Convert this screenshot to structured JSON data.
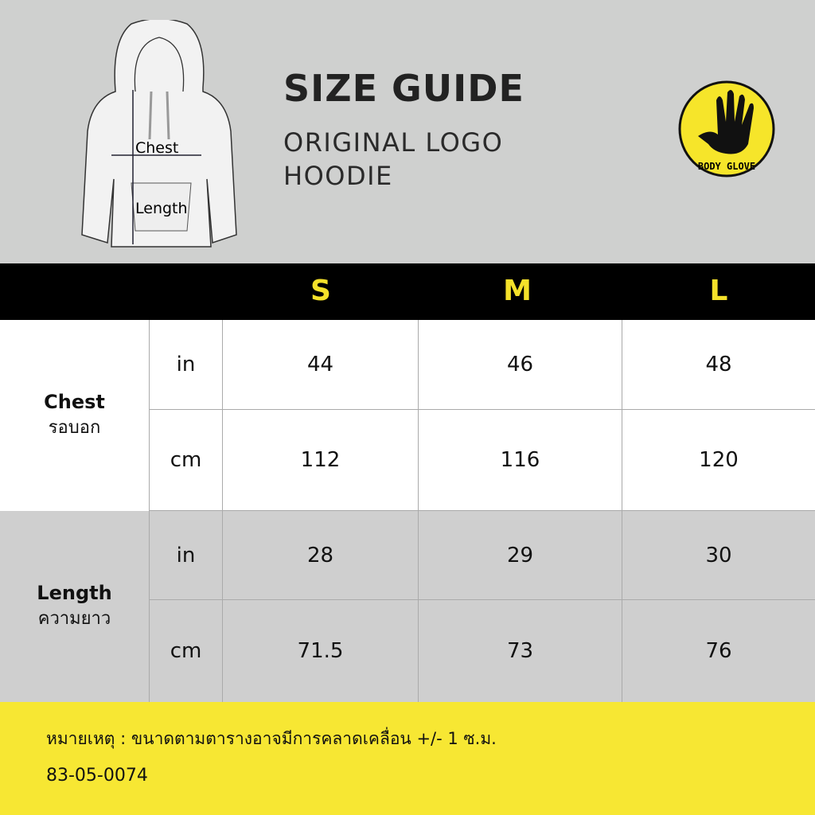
{
  "header": {
    "title": "SIZE GUIDE",
    "subtitle": "ORIGINAL LOGO HOODIE",
    "diagram_labels": {
      "chest": "Chest",
      "length": "Length"
    },
    "logo_text": "BODY GLOVE"
  },
  "table": {
    "sizes": [
      "S",
      "M",
      "L"
    ],
    "groups": [
      {
        "label": "Chest",
        "label_th": "รอบอก",
        "rows": [
          {
            "unit": "in",
            "values": [
              "44",
              "46",
              "48"
            ]
          },
          {
            "unit": "cm",
            "values": [
              "112",
              "116",
              "120"
            ]
          }
        ]
      },
      {
        "label": "Length",
        "label_th": "ความยาว",
        "rows": [
          {
            "unit": "in",
            "values": [
              "28",
              "29",
              "30"
            ]
          },
          {
            "unit": "cm",
            "values": [
              "71.5",
              "73",
              "76"
            ]
          }
        ]
      }
    ]
  },
  "footer": {
    "note": "หมายเหตุ : ขนาดตามตารางอาจมีการคลาดเคลื่อน +/- 1 ซ.ม.",
    "code": "83-05-0074"
  },
  "colors": {
    "accent": "#f7e733",
    "header_bg": "#000000",
    "size_text": "#f4e12a"
  }
}
